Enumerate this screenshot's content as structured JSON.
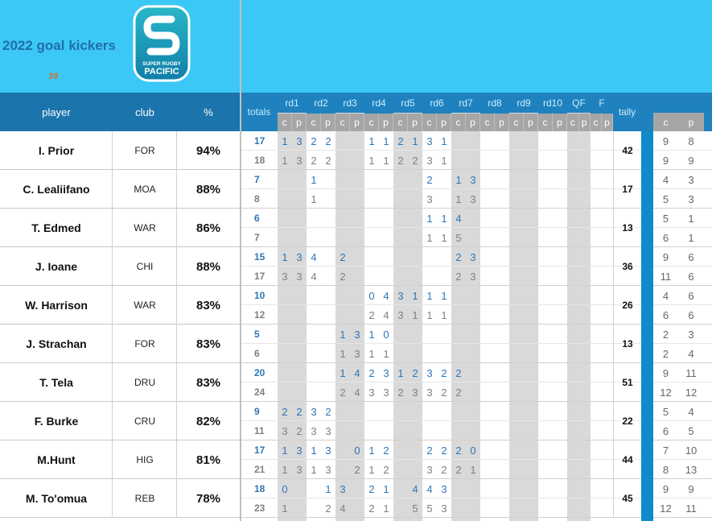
{
  "header": {
    "title": "2022 goal kickers",
    "note": "39",
    "logo": {
      "line1": "SUPER RUGBY",
      "line2": "PACIFIC"
    }
  },
  "table": {
    "columns": {
      "player": "player",
      "club": "club",
      "pct": "%",
      "totals": "totals",
      "tally": "tally"
    },
    "rounds": [
      "rd1",
      "rd2",
      "rd3",
      "rd4",
      "rd5",
      "rd6",
      "rd7",
      "rd8",
      "rd9",
      "rd10",
      "QF",
      "F"
    ],
    "sub_headers": [
      "c",
      "p"
    ],
    "players": [
      {
        "name": "I. Prior",
        "club": "FOR",
        "pct": "94%",
        "tally": 42,
        "made": {
          "total": 17,
          "rounds": [
            1,
            3,
            2,
            2,
            null,
            null,
            1,
            1,
            2,
            1,
            3,
            1,
            null,
            null,
            null,
            null,
            null,
            null,
            null,
            null,
            null,
            null,
            null,
            null
          ],
          "c": 9,
          "p": 8
        },
        "attempted": {
          "total": 18,
          "rounds": [
            1,
            3,
            2,
            2,
            null,
            null,
            1,
            1,
            2,
            2,
            3,
            1,
            null,
            null,
            null,
            null,
            null,
            null,
            null,
            null,
            null,
            null,
            null,
            null
          ],
          "c": 9,
          "p": 9
        }
      },
      {
        "name": "C. Lealiifano",
        "club": "MOA",
        "pct": "88%",
        "tally": 17,
        "made": {
          "total": 7,
          "rounds": [
            null,
            null,
            1,
            null,
            null,
            null,
            null,
            null,
            null,
            null,
            2,
            null,
            1,
            3,
            null,
            null,
            null,
            null,
            null,
            null,
            null,
            null,
            null,
            null
          ],
          "c": 4,
          "p": 3
        },
        "attempted": {
          "total": 8,
          "rounds": [
            null,
            null,
            1,
            null,
            null,
            null,
            null,
            null,
            null,
            null,
            3,
            null,
            1,
            3,
            null,
            null,
            null,
            null,
            null,
            null,
            null,
            null,
            null,
            null
          ],
          "c": 5,
          "p": 3
        }
      },
      {
        "name": "T. Edmed",
        "club": "WAR",
        "pct": "86%",
        "tally": 13,
        "made": {
          "total": 6,
          "rounds": [
            null,
            null,
            null,
            null,
            null,
            null,
            null,
            null,
            null,
            null,
            1,
            1,
            4,
            null,
            null,
            null,
            null,
            null,
            null,
            null,
            null,
            null,
            null,
            null
          ],
          "c": 5,
          "p": 1
        },
        "attempted": {
          "total": 7,
          "rounds": [
            null,
            null,
            null,
            null,
            null,
            null,
            null,
            null,
            null,
            null,
            1,
            1,
            5,
            null,
            null,
            null,
            null,
            null,
            null,
            null,
            null,
            null,
            null,
            null
          ],
          "c": 6,
          "p": 1
        }
      },
      {
        "name": "J. Ioane",
        "club": "CHI",
        "pct": "88%",
        "tally": 36,
        "made": {
          "total": 15,
          "rounds": [
            1,
            3,
            4,
            null,
            2,
            null,
            null,
            null,
            null,
            null,
            null,
            null,
            2,
            3,
            null,
            null,
            null,
            null,
            null,
            null,
            null,
            null,
            null,
            null
          ],
          "c": 9,
          "p": 6
        },
        "attempted": {
          "total": 17,
          "rounds": [
            3,
            3,
            4,
            null,
            2,
            null,
            null,
            null,
            null,
            null,
            null,
            null,
            2,
            3,
            null,
            null,
            null,
            null,
            null,
            null,
            null,
            null,
            null,
            null
          ],
          "c": 11,
          "p": 6
        }
      },
      {
        "name": "W. Harrison",
        "club": "WAR",
        "pct": "83%",
        "tally": 26,
        "made": {
          "total": 10,
          "rounds": [
            null,
            null,
            null,
            null,
            null,
            null,
            0,
            4,
            3,
            1,
            1,
            1,
            null,
            null,
            null,
            null,
            null,
            null,
            null,
            null,
            null,
            null,
            null,
            null
          ],
          "c": 4,
          "p": 6
        },
        "attempted": {
          "total": 12,
          "rounds": [
            null,
            null,
            null,
            null,
            null,
            null,
            2,
            4,
            3,
            1,
            1,
            1,
            null,
            null,
            null,
            null,
            null,
            null,
            null,
            null,
            null,
            null,
            null,
            null
          ],
          "c": 6,
          "p": 6
        }
      },
      {
        "name": "J. Strachan",
        "club": "FOR",
        "pct": "83%",
        "tally": 13,
        "made": {
          "total": 5,
          "rounds": [
            null,
            null,
            null,
            null,
            1,
            3,
            1,
            0,
            null,
            null,
            null,
            null,
            null,
            null,
            null,
            null,
            null,
            null,
            null,
            null,
            null,
            null,
            null,
            null
          ],
          "c": 2,
          "p": 3
        },
        "attempted": {
          "total": 6,
          "rounds": [
            null,
            null,
            null,
            null,
            1,
            3,
            1,
            1,
            null,
            null,
            null,
            null,
            null,
            null,
            null,
            null,
            null,
            null,
            null,
            null,
            null,
            null,
            null,
            null
          ],
          "c": 2,
          "p": 4
        }
      },
      {
        "name": "T. Tela",
        "club": "DRU",
        "pct": "83%",
        "tally": 51,
        "made": {
          "total": 20,
          "rounds": [
            null,
            null,
            null,
            null,
            1,
            4,
            2,
            3,
            1,
            2,
            3,
            2,
            2,
            null,
            null,
            null,
            null,
            null,
            null,
            null,
            null,
            null,
            null,
            null
          ],
          "c": 9,
          "p": 11
        },
        "attempted": {
          "total": 24,
          "rounds": [
            null,
            null,
            null,
            null,
            2,
            4,
            3,
            3,
            2,
            3,
            3,
            2,
            2,
            null,
            null,
            null,
            null,
            null,
            null,
            null,
            null,
            null,
            null,
            null
          ],
          "c": 12,
          "p": 12
        }
      },
      {
        "name": "F. Burke",
        "club": "CRU",
        "pct": "82%",
        "tally": 22,
        "made": {
          "total": 9,
          "rounds": [
            2,
            2,
            3,
            2,
            null,
            null,
            null,
            null,
            null,
            null,
            null,
            null,
            null,
            null,
            null,
            null,
            null,
            null,
            null,
            null,
            null,
            null,
            null,
            null
          ],
          "c": 5,
          "p": 4
        },
        "attempted": {
          "total": 11,
          "rounds": [
            3,
            2,
            3,
            3,
            null,
            null,
            null,
            null,
            null,
            null,
            null,
            null,
            null,
            null,
            null,
            null,
            null,
            null,
            null,
            null,
            null,
            null,
            null,
            null
          ],
          "c": 6,
          "p": 5
        }
      },
      {
        "name": "M.Hunt",
        "club": "HIG",
        "pct": "81%",
        "tally": 44,
        "made": {
          "total": 17,
          "rounds": [
            1,
            3,
            1,
            3,
            null,
            0,
            1,
            2,
            null,
            null,
            2,
            2,
            2,
            0,
            null,
            null,
            null,
            null,
            null,
            null,
            null,
            null,
            null,
            null
          ],
          "c": 7,
          "p": 10
        },
        "attempted": {
          "total": 21,
          "rounds": [
            1,
            3,
            1,
            3,
            null,
            2,
            1,
            2,
            null,
            null,
            3,
            2,
            2,
            1,
            null,
            null,
            null,
            null,
            null,
            null,
            null,
            null,
            null,
            null
          ],
          "c": 8,
          "p": 13
        }
      },
      {
        "name": "M. To'omua",
        "club": "REB",
        "pct": "78%",
        "tally": 45,
        "made": {
          "total": 18,
          "rounds": [
            0,
            null,
            null,
            1,
            3,
            null,
            2,
            1,
            null,
            4,
            4,
            3,
            null,
            null,
            null,
            null,
            null,
            null,
            null,
            null,
            null,
            null,
            null,
            null
          ],
          "c": 9,
          "p": 9
        },
        "attempted": {
          "total": 23,
          "rounds": [
            1,
            null,
            null,
            2,
            4,
            null,
            2,
            1,
            null,
            5,
            5,
            3,
            null,
            null,
            null,
            null,
            null,
            null,
            null,
            null,
            null,
            null,
            null,
            null
          ],
          "c": 12,
          "p": 11
        }
      }
    ]
  }
}
